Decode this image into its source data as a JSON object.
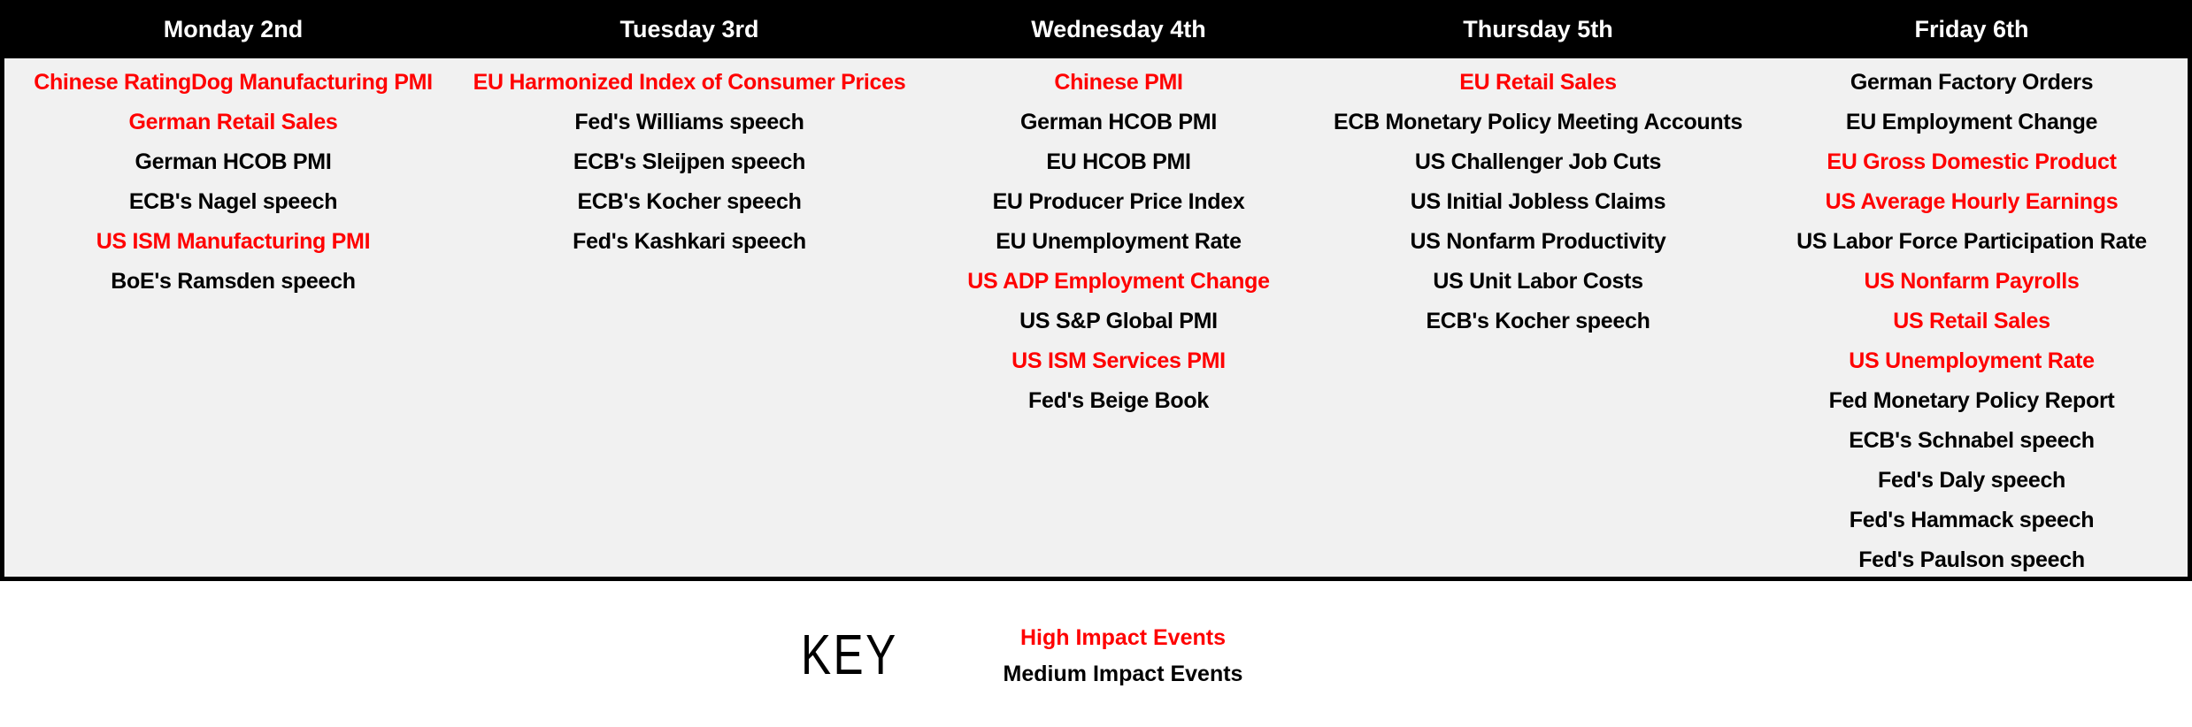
{
  "colors": {
    "high_impact": "#ff0000",
    "medium_impact": "#000000",
    "header_bg": "#000000",
    "header_text": "#ffffff",
    "body_bg": "#f1f1f1"
  },
  "calendar": {
    "columns": [
      {
        "day": "Monday 2nd",
        "events": [
          {
            "label": "Chinese RatingDog Manufacturing PMI",
            "impact": "high"
          },
          {
            "label": "German Retail Sales",
            "impact": "high"
          },
          {
            "label": "German HCOB PMI",
            "impact": "medium"
          },
          {
            "label": "ECB's Nagel speech",
            "impact": "medium"
          },
          {
            "label": "US ISM Manufacturing PMI",
            "impact": "high"
          },
          {
            "label": "BoE's Ramsden speech",
            "impact": "medium"
          }
        ]
      },
      {
        "day": "Tuesday 3rd",
        "events": [
          {
            "label": "EU Harmonized Index of Consumer Prices",
            "impact": "high"
          },
          {
            "label": "Fed's Williams speech",
            "impact": "medium"
          },
          {
            "label": "ECB's Sleijpen speech",
            "impact": "medium"
          },
          {
            "label": "ECB's Kocher speech",
            "impact": "medium"
          },
          {
            "label": "Fed's Kashkari speech",
            "impact": "medium"
          }
        ]
      },
      {
        "day": "Wednesday 4th",
        "events": [
          {
            "label": "Chinese PMI",
            "impact": "high"
          },
          {
            "label": "German HCOB PMI",
            "impact": "medium"
          },
          {
            "label": "EU HCOB PMI",
            "impact": "medium"
          },
          {
            "label": "EU Producer Price Index",
            "impact": "medium"
          },
          {
            "label": "EU Unemployment Rate",
            "impact": "medium"
          },
          {
            "label": "US ADP Employment Change",
            "impact": "high"
          },
          {
            "label": "US S&P Global PMI",
            "impact": "medium"
          },
          {
            "label": "US ISM Services PMI",
            "impact": "high"
          },
          {
            "label": "Fed's Beige Book",
            "impact": "medium"
          }
        ]
      },
      {
        "day": "Thursday 5th",
        "events": [
          {
            "label": "EU Retail Sales",
            "impact": "high"
          },
          {
            "label": "ECB Monetary Policy Meeting Accounts",
            "impact": "medium"
          },
          {
            "label": "US Challenger Job Cuts",
            "impact": "medium"
          },
          {
            "label": "US Initial Jobless Claims",
            "impact": "medium"
          },
          {
            "label": "US Nonfarm Productivity",
            "impact": "medium"
          },
          {
            "label": "US Unit Labor Costs",
            "impact": "medium"
          },
          {
            "label": "ECB's Kocher speech",
            "impact": "medium"
          }
        ]
      },
      {
        "day": "Friday 6th",
        "events": [
          {
            "label": "German Factory Orders",
            "impact": "medium"
          },
          {
            "label": "EU Employment Change",
            "impact": "medium"
          },
          {
            "label": "EU Gross Domestic Product",
            "impact": "high"
          },
          {
            "label": "US Average Hourly Earnings",
            "impact": "high"
          },
          {
            "label": "US Labor Force Participation Rate",
            "impact": "medium"
          },
          {
            "label": "US Nonfarm Payrolls",
            "impact": "high"
          },
          {
            "label": "US Retail Sales",
            "impact": "high"
          },
          {
            "label": "US Unemployment Rate",
            "impact": "high"
          },
          {
            "label": "Fed Monetary Policy Report",
            "impact": "medium"
          },
          {
            "label": "ECB's Schnabel speech",
            "impact": "medium"
          },
          {
            "label": "Fed's Daly speech",
            "impact": "medium"
          },
          {
            "label": "Fed's Hammack speech",
            "impact": "medium"
          },
          {
            "label": "Fed's Paulson speech",
            "impact": "medium"
          }
        ]
      }
    ]
  },
  "key": {
    "title": "KEY",
    "items": [
      {
        "label": "High Impact Events",
        "impact": "high"
      },
      {
        "label": "Medium Impact Events",
        "impact": "medium"
      }
    ]
  }
}
